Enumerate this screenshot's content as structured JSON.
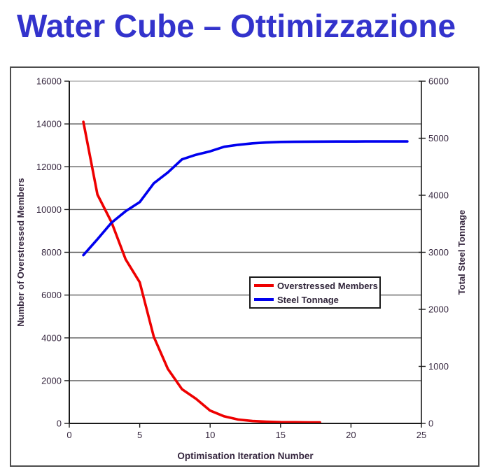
{
  "page": {
    "title": "Water Cube – Ottimizzazione",
    "title_color": "#3333cc"
  },
  "chart_data": {
    "type": "line",
    "title": "Water Cube – Ottimizzazione",
    "xlabel": "Optimisation Iteration Number",
    "grid": {
      "horizontal": true,
      "vertical": false,
      "top_border_gridline": true
    },
    "legend": {
      "position": "center-right",
      "bordered": true
    },
    "x": {
      "min": 0,
      "max": 25,
      "ticks": [
        0,
        5,
        10,
        15,
        20,
        25
      ]
    },
    "y_left": {
      "label": "Number of Overstressed Members",
      "min": 0,
      "max": 16000,
      "ticks": [
        0,
        2000,
        4000,
        6000,
        8000,
        10000,
        12000,
        14000,
        16000
      ]
    },
    "y_right": {
      "label": "Total Steel Tonnage",
      "min": 0,
      "max": 6000,
      "ticks": [
        0,
        1000,
        2000,
        3000,
        4000,
        5000,
        6000
      ]
    },
    "series": [
      {
        "name": "Overstressed Members",
        "axis": "left",
        "color": "#ee0000",
        "points": [
          [
            1,
            14100
          ],
          [
            2,
            10700
          ],
          [
            3,
            9400
          ],
          [
            4,
            7670
          ],
          [
            5,
            6600
          ],
          [
            6,
            4050
          ],
          [
            7,
            2550
          ],
          [
            8,
            1600
          ],
          [
            9,
            1150
          ],
          [
            10,
            600
          ],
          [
            11,
            330
          ],
          [
            12,
            180
          ],
          [
            13,
            110
          ],
          [
            14,
            80
          ],
          [
            15,
            60
          ],
          [
            16,
            55
          ],
          [
            17,
            50
          ],
          [
            17.8,
            50
          ]
        ]
      },
      {
        "name": "Steel Tonnage",
        "axis": "right",
        "color": "#0000ee",
        "points": [
          [
            1,
            2950
          ],
          [
            2,
            3230
          ],
          [
            3,
            3520
          ],
          [
            4,
            3720
          ],
          [
            5,
            3880
          ],
          [
            6,
            4210
          ],
          [
            7,
            4400
          ],
          [
            8,
            4630
          ],
          [
            9,
            4710
          ],
          [
            10,
            4770
          ],
          [
            11,
            4850
          ],
          [
            12,
            4885
          ],
          [
            13,
            4910
          ],
          [
            14,
            4925
          ],
          [
            15,
            4935
          ],
          [
            16,
            4938
          ],
          [
            17,
            4940
          ],
          [
            18,
            4941
          ],
          [
            19,
            4942
          ],
          [
            20,
            4942
          ],
          [
            21,
            4943
          ],
          [
            22,
            4943
          ],
          [
            23,
            4944
          ],
          [
            24,
            4944
          ]
        ]
      }
    ]
  }
}
